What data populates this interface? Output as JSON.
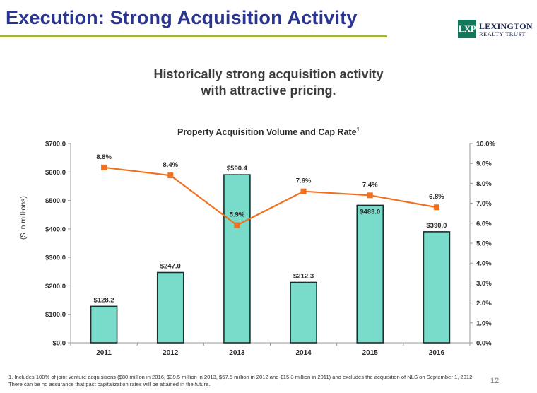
{
  "slide": {
    "title": "Execution: Strong Acquisition Activity",
    "headline_line1": "Historically strong acquisition activity",
    "headline_line2": "with attractive pricing.",
    "page_number": "12"
  },
  "logo": {
    "mark": "LXP",
    "name": "LEXINGTON",
    "sub": "REALTY TRUST"
  },
  "colors": {
    "title": "#2a3591",
    "rule": "#a2b33a",
    "bar_fill": "#79dccb",
    "bar_stroke": "#1e2e2e",
    "line": "#f0701f",
    "logo": "#12775b"
  },
  "chart_data": {
    "type": "bar",
    "title": "Property Acquisition Volume and Cap Rate",
    "title_superscript": "1",
    "categories": [
      "2011",
      "2012",
      "2013",
      "2014",
      "2015",
      "2016"
    ],
    "ylabel": "($ in millions)",
    "ylim": [
      0,
      700
    ],
    "yticks": [
      "$0.0",
      "$100.0",
      "$200.0",
      "$300.0",
      "$400.0",
      "$500.0",
      "$600.0",
      "$700.0"
    ],
    "y2lim": [
      0,
      10
    ],
    "y2ticks": [
      "0.0%",
      "1.0%",
      "2.0%",
      "3.0%",
      "4.0%",
      "5.0%",
      "6.0%",
      "7.0%",
      "8.0%",
      "9.0%",
      "10.0%"
    ],
    "series": [
      {
        "name": "Property Acquisition Volume",
        "kind": "bar",
        "values": [
          128.2,
          247.0,
          590.4,
          212.3,
          483.0,
          390.0
        ],
        "labels": [
          "$128.2",
          "$247.0",
          "$590.4",
          "$212.3",
          "$483.0",
          "$390.0"
        ]
      },
      {
        "name": "Cap Rate",
        "kind": "line",
        "axis": "right",
        "values": [
          8.8,
          8.4,
          5.9,
          7.6,
          7.4,
          6.8
        ],
        "labels": [
          "8.8%",
          "8.4%",
          "5.9%",
          "7.6%",
          "7.4%",
          "6.8%"
        ]
      }
    ],
    "grid": false,
    "legend": "none"
  },
  "footnote": "1. Includes 100% of joint venture acquisitions ($80 million in 2016, $39.5 million in 2013, $57.5 million in 2012 and $15.3 million in 2011) and excludes the acquisition of NLS on September 1, 2012. There can be no assurance that past capitalization rates will be attained in the future."
}
